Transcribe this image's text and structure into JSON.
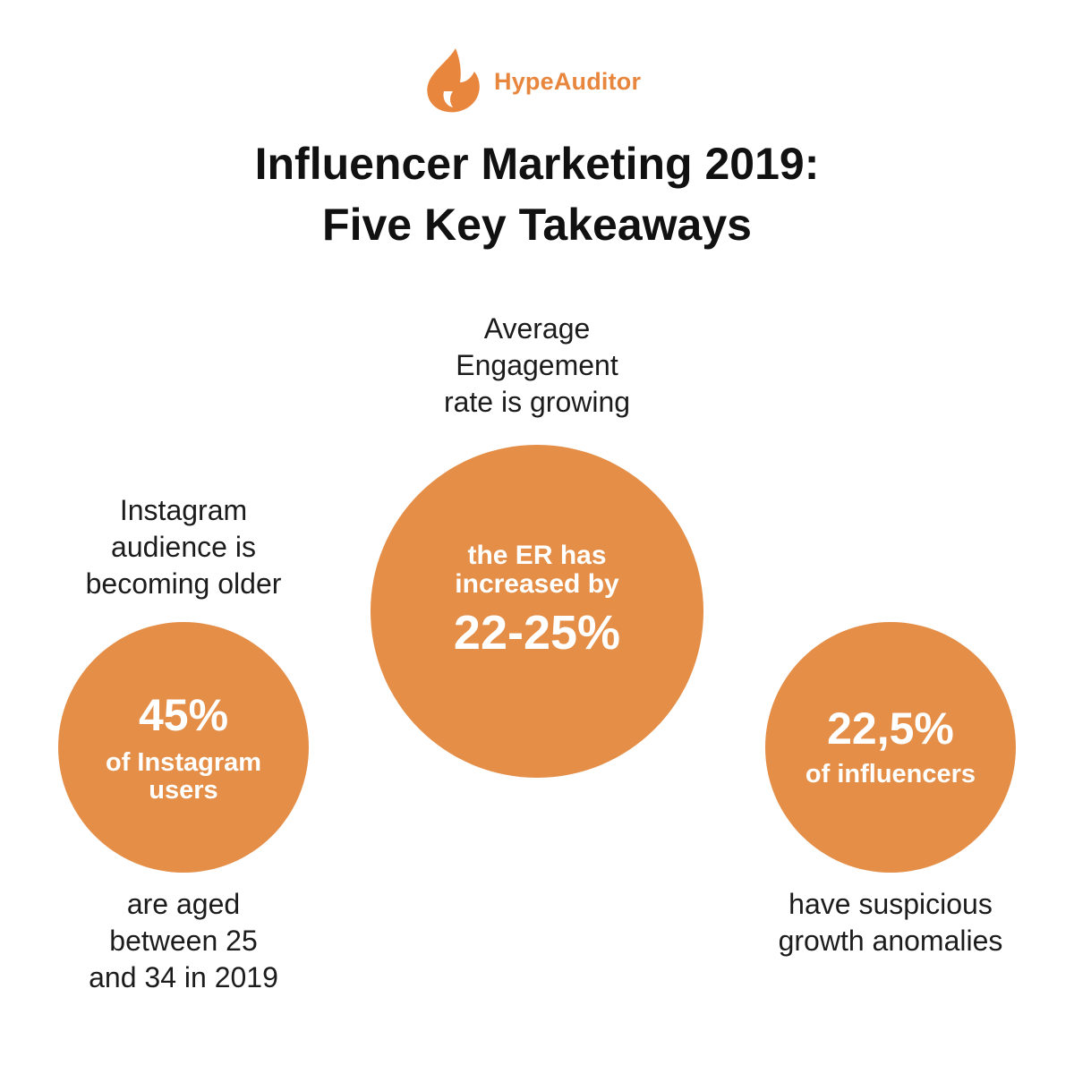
{
  "brand": {
    "name": "HypeAuditor",
    "icon": "flame-icon",
    "color": "#e8863e"
  },
  "title": {
    "line1": "Influencer Marketing 2019:",
    "line2": "Five Key Takeaways"
  },
  "circle_color": "#e48e48",
  "items": [
    {
      "heading": [
        "Instagram",
        "audience is",
        "becoming older"
      ],
      "stat": "45%",
      "stat_label": [
        "of Instagram",
        "users"
      ],
      "footer": [
        "are aged",
        "between 25",
        "and 34 in 2019"
      ]
    },
    {
      "heading": [
        "Average",
        "Engagement",
        "rate is growing"
      ],
      "stat_label": [
        "the ER has",
        "increased by"
      ],
      "stat": "22-25%"
    },
    {
      "stat": "22,5%",
      "stat_label": [
        "of influencers"
      ],
      "footer": [
        "have suspicious",
        "growth anomalies"
      ]
    }
  ]
}
